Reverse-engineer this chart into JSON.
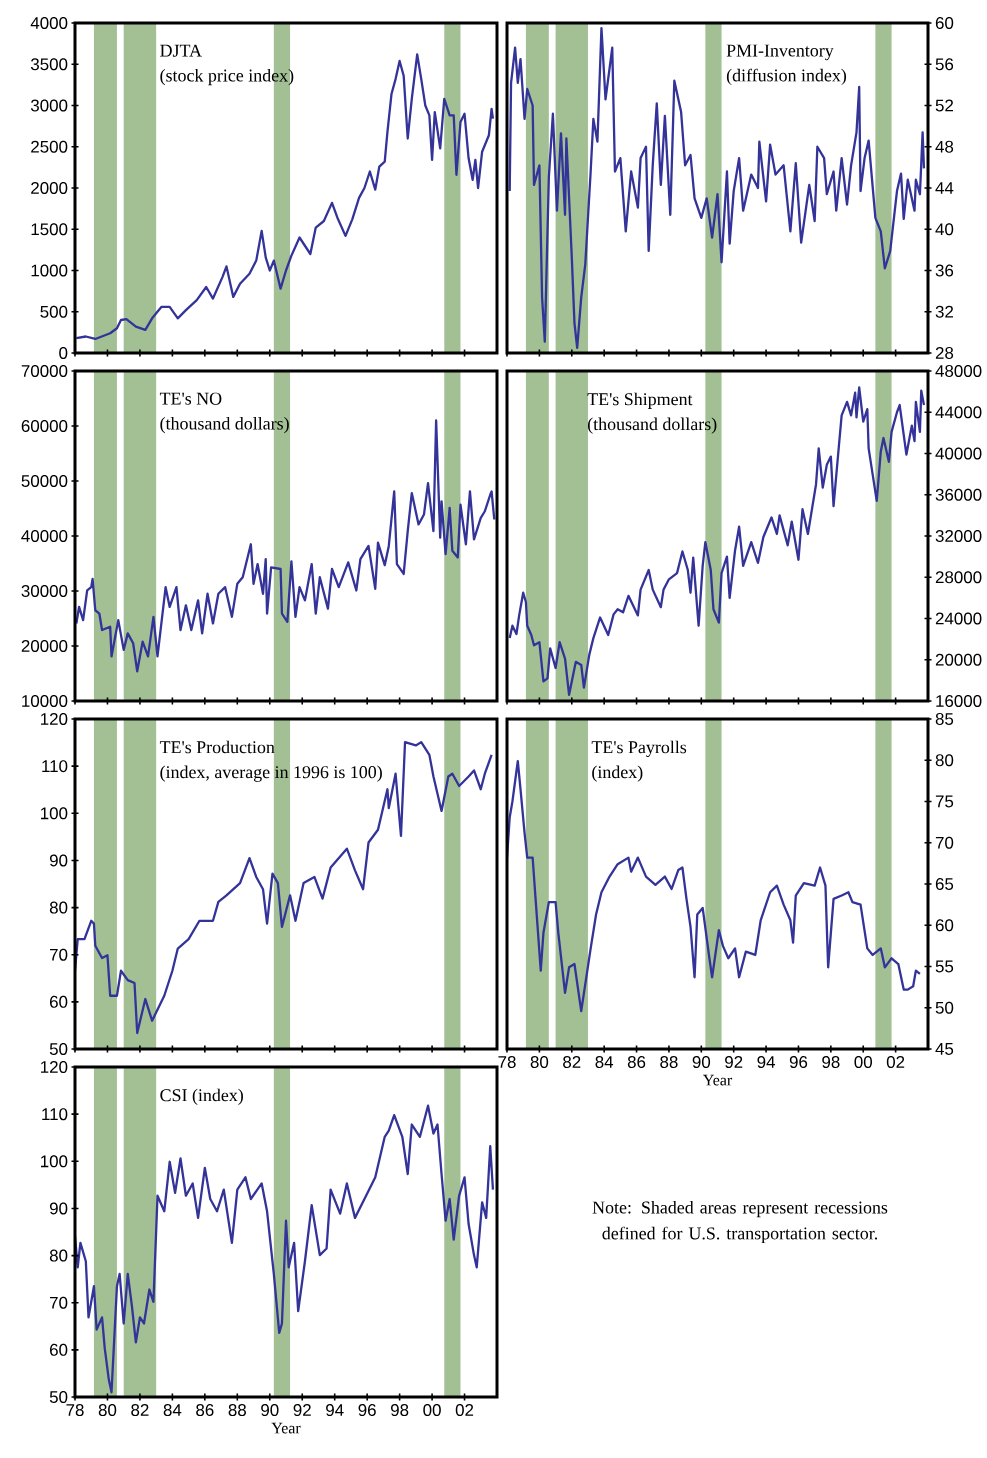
{
  "chart_data": [
    {
      "type": "line",
      "title": "DJTA",
      "subtitle": "(stock price index)",
      "color": "#333399",
      "xlim": [
        "1978-01",
        "2004-01"
      ],
      "ylim": [
        0,
        4000
      ],
      "yticks": [
        0,
        500,
        1000,
        1500,
        2000,
        2500,
        3000,
        3500,
        4000
      ],
      "tick_labels": "y",
      "xticks": [
        {
          "value": "1978",
          "label": null
        },
        {
          "value": "1980",
          "label": null
        },
        {
          "value": "1982",
          "label": null
        },
        {
          "value": "1984",
          "label": null
        },
        {
          "value": "1986",
          "label": null
        },
        {
          "value": "1988",
          "label": null
        },
        {
          "value": "1990",
          "label": null
        },
        {
          "value": "1992",
          "label": null
        },
        {
          "value": "1994",
          "label": null
        },
        {
          "value": "1996",
          "label": null
        },
        {
          "value": "1998",
          "label": null
        },
        {
          "value": "2000",
          "label": null
        },
        {
          "value": "2002",
          "label": null
        }
      ],
      "bands": [
        {
          "axis": "x",
          "from": "1979-03",
          "to": "1980-08",
          "color": "#a3c095"
        },
        {
          "axis": "x",
          "from": "1981-01",
          "to": "1983-01",
          "color": "#a3c095"
        },
        {
          "axis": "x",
          "from": "1990-04",
          "to": "1991-04",
          "color": "#a3c095"
        },
        {
          "axis": "x",
          "from": "2000-10",
          "to": "2001-10",
          "color": "#a3c095"
        }
      ],
      "x": [
        "1978-02",
        "1978-09",
        "1979-04",
        "1980-03",
        "1980-08",
        "1980-11",
        "1981-03",
        "1981-10",
        "1982-05",
        "1982-10",
        "1983-05",
        "1983-11",
        "1984-05",
        "1984-11",
        "1985-07",
        "1986-02",
        "1986-07",
        "1987-02",
        "1987-05",
        "1987-10",
        "1988-03",
        "1988-10",
        "1989-03",
        "1989-07",
        "1989-10",
        "1990-01",
        "1990-04",
        "1990-09",
        "1991-01",
        "1991-05",
        "1991-11",
        "1992-07",
        "1992-11",
        "1993-05",
        "1993-11",
        "1994-03",
        "1994-09",
        "1995-02",
        "1995-07",
        "1995-11",
        "1996-03",
        "1996-07",
        "1996-10",
        "1997-02",
        "1997-04",
        "1997-07",
        "1997-10",
        "1998-01",
        "1998-04",
        "1998-07",
        "1998-10",
        "1999-02",
        "1999-05",
        "1999-08",
        "1999-11",
        "2000-01",
        "2000-03",
        "2000-07",
        "2000-10",
        "2001-02",
        "2001-05",
        "2001-07",
        "2001-10",
        "2002-01",
        "2002-04",
        "2002-07",
        "2002-09",
        "2002-11",
        "2003-02",
        "2003-07",
        "2003-09",
        "2003-10"
      ],
      "values": [
        180,
        200,
        170,
        240,
        300,
        400,
        410,
        320,
        280,
        420,
        560,
        560,
        420,
        520,
        640,
        800,
        660,
        920,
        1050,
        680,
        840,
        960,
        1120,
        1480,
        1160,
        1000,
        1120,
        780,
        1000,
        1180,
        1400,
        1200,
        1520,
        1600,
        1820,
        1640,
        1420,
        1620,
        1880,
        2000,
        2200,
        1980,
        2260,
        2320,
        2680,
        3140,
        3320,
        3540,
        3360,
        2600,
        3080,
        3620,
        3320,
        3000,
        2880,
        2340,
        2920,
        2480,
        3080,
        2880,
        2880,
        2160,
        2800,
        2900,
        2360,
        2100,
        2340,
        2000,
        2440,
        2640,
        2960,
        2840
      ]
    },
    {
      "type": "line",
      "title": "PMI-Inventory",
      "subtitle": "(diffusion index)",
      "color": "#333399",
      "xlim": [
        "1978-01",
        "2004-01"
      ],
      "ylim": [
        28,
        60
      ],
      "yticks": [
        28,
        32,
        36,
        40,
        44,
        48,
        52,
        56,
        60
      ],
      "tick_labels": "y",
      "xticks": [
        {
          "value": "1978",
          "label": null
        },
        {
          "value": "1980",
          "label": null
        },
        {
          "value": "1982",
          "label": null
        },
        {
          "value": "1984",
          "label": null
        },
        {
          "value": "1986",
          "label": null
        },
        {
          "value": "1988",
          "label": null
        },
        {
          "value": "1990",
          "label": null
        },
        {
          "value": "1992",
          "label": null
        },
        {
          "value": "1994",
          "label": null
        },
        {
          "value": "1996",
          "label": null
        },
        {
          "value": "1998",
          "label": null
        },
        {
          "value": "2000",
          "label": null
        },
        {
          "value": "2002",
          "label": null
        }
      ],
      "bands": [
        {
          "axis": "x",
          "from": "1979-03",
          "to": "1980-08",
          "color": "#a3c095"
        },
        {
          "axis": "x",
          "from": "1981-01",
          "to": "1983-01",
          "color": "#a3c095"
        },
        {
          "axis": "x",
          "from": "1990-04",
          "to": "1991-04",
          "color": "#a3c095"
        },
        {
          "axis": "x",
          "from": "2000-10",
          "to": "2001-10",
          "color": "#a3c095"
        }
      ],
      "x": [
        "1978-03",
        "1978-04",
        "1978-07",
        "1978-09",
        "1978-11",
        "1979-02",
        "1979-04",
        "1979-08",
        "1979-09",
        "1980-01",
        "1980-03",
        "1980-05",
        "1980-08",
        "1980-11",
        "1981-02",
        "1981-05",
        "1981-08",
        "1981-09",
        "1982-01",
        "1982-03",
        "1982-05",
        "1982-08",
        "1982-11",
        "1983-03",
        "1983-05",
        "1983-08",
        "1983-11",
        "1984-02",
        "1984-07",
        "1984-09",
        "1985-01",
        "1985-05",
        "1985-09",
        "1986-02",
        "1986-04",
        "1986-08",
        "1986-10",
        "1987-01",
        "1987-04",
        "1987-07",
        "1987-10",
        "1988-02",
        "1988-05",
        "1988-10",
        "1989-01",
        "1989-05",
        "1989-08",
        "1990-01",
        "1990-05",
        "1990-09",
        "1991-01",
        "1991-04",
        "1991-08",
        "1991-10",
        "1992-01",
        "1992-05",
        "1992-08",
        "1993-02",
        "1993-07",
        "1993-08",
        "1994-01",
        "1994-04",
        "1994-08",
        "1995-02",
        "1995-07",
        "1995-11",
        "1996-03",
        "1996-09",
        "1997-01",
        "1997-03",
        "1997-08",
        "1997-10",
        "1998-03",
        "1998-05",
        "1998-09",
        "1999-01",
        "1999-04",
        "1999-08",
        "1999-10",
        "1999-11",
        "2000-02",
        "2000-05",
        "2000-10",
        "2001-02",
        "2001-05",
        "2001-09",
        "2002-02",
        "2002-05",
        "2002-07",
        "2002-10",
        "2003-03",
        "2003-04",
        "2003-07",
        "2003-09",
        "2003-10"
      ],
      "values": [
        43.7,
        54.2,
        57.6,
        54.2,
        56.5,
        50.7,
        53.6,
        52.0,
        44.3,
        46.2,
        33.4,
        29.1,
        45.0,
        51.2,
        41.8,
        49.3,
        41.4,
        48.8,
        37.3,
        30.9,
        28.5,
        33.4,
        36.6,
        45.6,
        50.7,
        48.5,
        59.5,
        52.6,
        57.6,
        45.6,
        46.9,
        39.8,
        45.6,
        42.1,
        46.9,
        48.0,
        37.9,
        46.2,
        52.2,
        44.3,
        51.0,
        41.4,
        54.4,
        51.4,
        46.2,
        47.2,
        43.0,
        41.1,
        43.0,
        39.2,
        43.4,
        36.8,
        45.6,
        38.6,
        43.7,
        46.9,
        41.8,
        45.3,
        44.0,
        48.5,
        42.7,
        48.2,
        45.3,
        46.2,
        39.8,
        46.4,
        38.7,
        44.3,
        40.8,
        48.0,
        46.9,
        43.4,
        45.6,
        41.8,
        46.9,
        42.4,
        46.2,
        49.4,
        53.8,
        43.7,
        46.9,
        48.6,
        41.1,
        39.8,
        36.2,
        37.9,
        43.7,
        45.4,
        41.0,
        44.8,
        41.8,
        44.8,
        43.4,
        49.4,
        45.9
      ]
    },
    {
      "type": "line",
      "title": "TE's NO",
      "subtitle": "(thousand dollars)",
      "color": "#333399",
      "xlim": [
        "1978-01",
        "2004-01"
      ],
      "ylim": [
        10000,
        70000
      ],
      "yticks": [
        10000,
        20000,
        30000,
        40000,
        50000,
        60000,
        70000
      ],
      "tick_labels": "y",
      "xticks": [
        {
          "value": "1978",
          "label": null
        },
        {
          "value": "1980",
          "label": null
        },
        {
          "value": "1982",
          "label": null
        },
        {
          "value": "1984",
          "label": null
        },
        {
          "value": "1986",
          "label": null
        },
        {
          "value": "1988",
          "label": null
        },
        {
          "value": "1990",
          "label": null
        },
        {
          "value": "1992",
          "label": null
        },
        {
          "value": "1994",
          "label": null
        },
        {
          "value": "1996",
          "label": null
        },
        {
          "value": "1998",
          "label": null
        },
        {
          "value": "2000",
          "label": null
        },
        {
          "value": "2002",
          "label": null
        }
      ],
      "bands": [
        {
          "axis": "x",
          "from": "1979-03",
          "to": "1980-08",
          "color": "#a3c095"
        },
        {
          "axis": "x",
          "from": "1981-01",
          "to": "1983-01",
          "color": "#a3c095"
        },
        {
          "axis": "x",
          "from": "1990-04",
          "to": "1991-04",
          "color": "#a3c095"
        },
        {
          "axis": "x",
          "from": "2000-10",
          "to": "2001-10",
          "color": "#a3c095"
        }
      ],
      "x": [
        "1978-02",
        "1978-04",
        "1978-07",
        "1978-10",
        "1979-01",
        "1979-02",
        "1979-04",
        "1979-07",
        "1979-09",
        "1980-03",
        "1980-04",
        "1980-09",
        "1981-01",
        "1981-04",
        "1981-08",
        "1981-11",
        "1982-03",
        "1982-07",
        "1982-11",
        "1983-02",
        "1983-08",
        "1983-11",
        "1984-04",
        "1984-07",
        "1984-11",
        "1985-03",
        "1985-08",
        "1985-11",
        "1986-03",
        "1986-07",
        "1986-11",
        "1987-04",
        "1987-09",
        "1988-01",
        "1988-05",
        "1988-11",
        "1989-01",
        "1989-04",
        "1989-08",
        "1989-10",
        "1989-11",
        "1990-02",
        "1990-09",
        "1990-10",
        "1991-02",
        "1991-05",
        "1991-08",
        "1991-11",
        "1992-03",
        "1992-08",
        "1992-11",
        "1993-02",
        "1993-08",
        "1993-11",
        "1994-04",
        "1994-11",
        "1995-05",
        "1995-08",
        "1996-02",
        "1996-07",
        "1996-09",
        "1997-02",
        "1997-05",
        "1997-09",
        "1997-11",
        "1998-04",
        "1998-07",
        "1998-10",
        "1999-03",
        "1999-07",
        "1999-10",
        "2000-02",
        "2000-04",
        "2000-07",
        "2000-08",
        "2000-11",
        "2001-02",
        "2001-04",
        "2001-08",
        "2001-10",
        "2002-02",
        "2002-05",
        "2002-08",
        "2003-01",
        "2003-04",
        "2003-08",
        "2003-09",
        "2003-11"
      ],
      "values": [
        24100,
        27100,
        24700,
        30100,
        30700,
        32200,
        26500,
        25900,
        22900,
        23500,
        18100,
        24700,
        19300,
        22300,
        20500,
        15400,
        20800,
        18100,
        25300,
        18100,
        30700,
        27100,
        30700,
        22900,
        27400,
        22900,
        28300,
        22300,
        29500,
        24100,
        29500,
        30700,
        25300,
        31300,
        32500,
        38500,
        31300,
        34900,
        29500,
        35800,
        25900,
        34300,
        34000,
        25900,
        24400,
        35400,
        25300,
        30700,
        28300,
        34900,
        25900,
        32500,
        26800,
        34000,
        30700,
        35200,
        30100,
        35800,
        38200,
        30400,
        38800,
        34700,
        38200,
        48100,
        34900,
        33100,
        40900,
        47800,
        42100,
        43900,
        49600,
        40900,
        61000,
        39700,
        46300,
        36700,
        45100,
        37300,
        36100,
        45700,
        38500,
        48100,
        39400,
        43300,
        44500,
        47500,
        48100,
        43000
      ]
    },
    {
      "type": "line",
      "title": "TE's Shipment",
      "subtitle": "(thousand dollars)",
      "color": "#333399",
      "xlim": [
        "1978-01",
        "2004-01"
      ],
      "ylim": [
        16000,
        48000
      ],
      "yticks": [
        16000,
        20000,
        24000,
        28000,
        32000,
        36000,
        40000,
        44000,
        48000
      ],
      "tick_labels": "y",
      "xticks": [
        {
          "value": "1978",
          "label": null
        },
        {
          "value": "1980",
          "label": null
        },
        {
          "value": "1982",
          "label": null
        },
        {
          "value": "1984",
          "label": null
        },
        {
          "value": "1986",
          "label": null
        },
        {
          "value": "1988",
          "label": null
        },
        {
          "value": "1990",
          "label": null
        },
        {
          "value": "1992",
          "label": null
        },
        {
          "value": "1994",
          "label": null
        },
        {
          "value": "1996",
          "label": null
        },
        {
          "value": "1998",
          "label": null
        },
        {
          "value": "2000",
          "label": null
        },
        {
          "value": "2002",
          "label": null
        }
      ],
      "bands": [
        {
          "axis": "x",
          "from": "1979-03",
          "to": "1980-08",
          "color": "#a3c095"
        },
        {
          "axis": "x",
          "from": "1981-01",
          "to": "1983-01",
          "color": "#a3c095"
        },
        {
          "axis": "x",
          "from": "1990-04",
          "to": "1991-04",
          "color": "#a3c095"
        },
        {
          "axis": "x",
          "from": "2000-10",
          "to": "2001-10",
          "color": "#a3c095"
        }
      ],
      "x": [
        "1978-03",
        "1978-05",
        "1978-08",
        "1978-10",
        "1979-01",
        "1979-03",
        "1979-04",
        "1979-07",
        "1979-09",
        "1980-01",
        "1980-04",
        "1980-07",
        "1980-09",
        "1981-01",
        "1981-04",
        "1981-08",
        "1981-11",
        "1982-04",
        "1982-08",
        "1982-10",
        "1983-02",
        "1983-05",
        "1983-10",
        "1984-04",
        "1984-08",
        "1984-11",
        "1985-03",
        "1985-07",
        "1986-02",
        "1986-04",
        "1986-10",
        "1987-01",
        "1987-07",
        "1987-09",
        "1988-01",
        "1988-07",
        "1988-11",
        "1989-03",
        "1989-05",
        "1989-07",
        "1989-11",
        "1990-02",
        "1990-04",
        "1990-08",
        "1990-10",
        "1991-02",
        "1991-04",
        "1991-08",
        "1991-10",
        "1992-02",
        "1992-05",
        "1992-08",
        "1993-02",
        "1993-07",
        "1993-11",
        "1994-05",
        "1994-09",
        "1994-11",
        "1995-05",
        "1995-08",
        "1996-01",
        "1996-04",
        "1996-08",
        "1997-02",
        "1997-04",
        "1997-07",
        "1997-10",
        "1998-01",
        "1998-03",
        "1998-07",
        "1998-09",
        "1999-01",
        "1999-04",
        "1999-07",
        "1999-08",
        "1999-10",
        "2000-01",
        "2000-04",
        "2000-05",
        "2000-11",
        "2001-02",
        "2001-04",
        "2001-08",
        "2001-10",
        "2002-02",
        "2002-04",
        "2002-09",
        "2003-01",
        "2003-03",
        "2003-04",
        "2003-07",
        "2003-08",
        "2003-10"
      ],
      "values": [
        22100,
        23300,
        22500,
        24300,
        26500,
        25600,
        23300,
        22400,
        21400,
        21700,
        17900,
        18200,
        21100,
        19200,
        21700,
        20100,
        16600,
        19800,
        19500,
        17300,
        20500,
        22100,
        24100,
        22400,
        24400,
        24900,
        24600,
        26200,
        24300,
        26800,
        28700,
        26800,
        25100,
        26800,
        27800,
        28400,
        30500,
        28700,
        26500,
        29900,
        23300,
        29100,
        31400,
        28700,
        24900,
        23600,
        28400,
        30000,
        26000,
        30600,
        32900,
        29100,
        31400,
        29400,
        31900,
        33800,
        32200,
        34000,
        31100,
        33400,
        29700,
        34600,
        32200,
        37000,
        40500,
        36700,
        38900,
        39700,
        34900,
        40800,
        43700,
        45000,
        43700,
        45900,
        43500,
        46400,
        43100,
        44300,
        40500,
        35400,
        40200,
        41500,
        39200,
        42100,
        44000,
        44700,
        39900,
        42700,
        41200,
        45000,
        42100,
        46100,
        44700
      ]
    },
    {
      "type": "line",
      "title": "TE's Production",
      "subtitle": "(index, average in 1996 is 100)",
      "color": "#333399",
      "xlim": [
        "1978-01",
        "2004-01"
      ],
      "ylim": [
        50,
        120
      ],
      "yticks": [
        50,
        60,
        70,
        80,
        90,
        100,
        110,
        120
      ],
      "tick_labels": "y",
      "xticks": [
        {
          "value": "1978",
          "label": null
        },
        {
          "value": "1980",
          "label": null
        },
        {
          "value": "1982",
          "label": null
        },
        {
          "value": "1984",
          "label": null
        },
        {
          "value": "1986",
          "label": null
        },
        {
          "value": "1988",
          "label": null
        },
        {
          "value": "1990",
          "label": null
        },
        {
          "value": "1992",
          "label": null
        },
        {
          "value": "1994",
          "label": null
        },
        {
          "value": "1996",
          "label": null
        },
        {
          "value": "1998",
          "label": null
        },
        {
          "value": "2000",
          "label": null
        },
        {
          "value": "2002",
          "label": null
        }
      ],
      "bands": [
        {
          "axis": "x",
          "from": "1979-03",
          "to": "1980-08",
          "color": "#a3c095"
        },
        {
          "axis": "x",
          "from": "1981-01",
          "to": "1983-01",
          "color": "#a3c095"
        },
        {
          "axis": "x",
          "from": "1990-04",
          "to": "1991-04",
          "color": "#a3c095"
        },
        {
          "axis": "x",
          "from": "2000-10",
          "to": "2001-10",
          "color": "#a3c095"
        }
      ],
      "x": [
        "1978-01",
        "1978-03",
        "1978-08",
        "1979-01",
        "1979-03",
        "1979-04",
        "1979-09",
        "1980-01",
        "1980-03",
        "1980-08",
        "1980-11",
        "1981-04",
        "1981-09",
        "1981-11",
        "1982-05",
        "1982-10",
        "1983-07",
        "1984-01",
        "1984-05",
        "1985-01",
        "1985-09",
        "1986-07",
        "1986-11",
        "1987-05",
        "1988-03",
        "1988-10",
        "1989-03",
        "1989-08",
        "1989-11",
        "1990-03",
        "1990-07",
        "1990-10",
        "1991-04",
        "1991-08",
        "1992-02",
        "1992-10",
        "1993-04",
        "1993-10",
        "1994-10",
        "1995-04",
        "1995-10",
        "1996-02",
        "1996-09",
        "1997-04",
        "1997-05",
        "1997-10",
        "1998-02",
        "1998-05",
        "1999-01",
        "1999-05",
        "1999-11",
        "2000-02",
        "2000-08",
        "2001-01",
        "2001-04",
        "2001-09",
        "2002-04",
        "2002-08",
        "2003-01",
        "2003-04",
        "2003-09"
      ],
      "values": [
        66.6,
        73.3,
        73.3,
        77.2,
        76.6,
        71.9,
        69.3,
        69.9,
        61.3,
        61.3,
        66.6,
        64.6,
        64.0,
        53.4,
        60.6,
        56.0,
        61.3,
        66.6,
        71.3,
        73.3,
        77.2,
        77.2,
        81.2,
        82.6,
        85.2,
        90.5,
        86.5,
        83.9,
        76.6,
        87.2,
        85.2,
        75.9,
        82.6,
        77.2,
        85.2,
        86.5,
        81.9,
        88.5,
        92.5,
        87.9,
        83.9,
        93.8,
        96.5,
        105.1,
        101.1,
        108.4,
        95.2,
        115.1,
        114.4,
        115.1,
        112.4,
        107.8,
        100.5,
        107.8,
        108.4,
        105.8,
        107.8,
        109.1,
        105.1,
        108.4,
        112.4
      ]
    },
    {
      "type": "line",
      "title": "TE's Payrolls",
      "subtitle": "(index)",
      "xlabel": "Year",
      "color": "#333399",
      "xlim": [
        "1978-01",
        "2004-01"
      ],
      "ylim": [
        45,
        85
      ],
      "yticks": [
        45,
        50,
        55,
        60,
        65,
        70,
        75,
        80,
        85
      ],
      "xticks": [
        {
          "value": "1978",
          "label": "78"
        },
        {
          "value": "1980",
          "label": "80"
        },
        {
          "value": "1982",
          "label": "82"
        },
        {
          "value": "1984",
          "label": "84"
        },
        {
          "value": "1986",
          "label": "86"
        },
        {
          "value": "1988",
          "label": "88"
        },
        {
          "value": "1990",
          "label": "90"
        },
        {
          "value": "1992",
          "label": "92"
        },
        {
          "value": "1994",
          "label": "94"
        },
        {
          "value": "1996",
          "label": "96"
        },
        {
          "value": "1998",
          "label": "98"
        },
        {
          "value": "2000",
          "label": "00"
        },
        {
          "value": "2002",
          "label": "02"
        }
      ],
      "bands": [
        {
          "axis": "x",
          "from": "1979-03",
          "to": "1980-08",
          "color": "#a3c095"
        },
        {
          "axis": "x",
          "from": "1981-01",
          "to": "1983-01",
          "color": "#a3c095"
        },
        {
          "axis": "x",
          "from": "1990-04",
          "to": "1991-04",
          "color": "#a3c095"
        },
        {
          "axis": "x",
          "from": "2000-10",
          "to": "2001-10",
          "color": "#a3c095"
        }
      ],
      "x": [
        "1978-01",
        "1978-03",
        "1978-05",
        "1978-09",
        "1978-11",
        "1979-02",
        "1979-04",
        "1979-08",
        "1979-10",
        "1980-02",
        "1980-04",
        "1980-08",
        "1981-01",
        "1981-03",
        "1981-08",
        "1981-11",
        "1982-03",
        "1982-08",
        "1983-03",
        "1983-07",
        "1983-11",
        "1984-05",
        "1984-11",
        "1985-07",
        "1985-09",
        "1986-02",
        "1986-08",
        "1987-03",
        "1987-10",
        "1988-03",
        "1988-08",
        "1988-11",
        "1989-02",
        "1989-05",
        "1989-08",
        "1989-10",
        "1990-02",
        "1990-07",
        "1990-09",
        "1991-02",
        "1991-05",
        "1991-09",
        "1992-02",
        "1992-05",
        "1992-10",
        "1993-05",
        "1993-09",
        "1994-04",
        "1994-09",
        "1995-02",
        "1995-07",
        "1995-09",
        "1995-11",
        "1996-05",
        "1997-01",
        "1997-05",
        "1997-09",
        "1997-11",
        "1998-03",
        "1998-09",
        "1999-02",
        "1999-05",
        "1999-11",
        "2000-04",
        "2000-08",
        "2001-02",
        "2001-05",
        "2001-10",
        "2002-03",
        "2002-07",
        "2002-10",
        "2003-02",
        "2003-04",
        "2003-07"
      ],
      "values": [
        68.2,
        73.1,
        75.0,
        79.9,
        76.5,
        71.2,
        68.2,
        68.2,
        63.6,
        54.5,
        59.1,
        62.8,
        62.8,
        59.1,
        51.8,
        54.9,
        55.3,
        49.6,
        57.2,
        61.3,
        64.0,
        65.9,
        67.4,
        68.2,
        66.5,
        68.2,
        65.9,
        64.9,
        65.9,
        64.4,
        66.7,
        67.0,
        63.2,
        59.8,
        53.7,
        61.3,
        62.1,
        56.0,
        53.7,
        59.4,
        57.5,
        56.0,
        57.2,
        53.7,
        56.8,
        56.4,
        60.6,
        64.0,
        64.8,
        62.5,
        60.6,
        57.9,
        63.6,
        65.1,
        64.8,
        67.0,
        64.8,
        54.9,
        63.2,
        63.6,
        64.0,
        62.8,
        62.5,
        57.2,
        56.4,
        57.2,
        54.9,
        56.0,
        55.3,
        52.2,
        52.2,
        52.6,
        54.5,
        54.1
      ]
    },
    {
      "type": "line",
      "title": "CSI (index)",
      "xlabel": "Year",
      "color": "#333399",
      "xlim": [
        "1978-01",
        "2004-01"
      ],
      "ylim": [
        50,
        120
      ],
      "yticks": [
        50,
        60,
        70,
        80,
        90,
        100,
        110,
        120
      ],
      "annotations": [
        "Note: Shaded areas represent recessions defined for U.S. transportation sector."
      ],
      "xticks": [
        {
          "value": "1978",
          "label": "78"
        },
        {
          "value": "1980",
          "label": "80"
        },
        {
          "value": "1982",
          "label": "82"
        },
        {
          "value": "1984",
          "label": "84"
        },
        {
          "value": "1986",
          "label": "86"
        },
        {
          "value": "1988",
          "label": "88"
        },
        {
          "value": "1990",
          "label": "90"
        },
        {
          "value": "1992",
          "label": "92"
        },
        {
          "value": "1994",
          "label": "94"
        },
        {
          "value": "1996",
          "label": "96"
        },
        {
          "value": "1998",
          "label": "98"
        },
        {
          "value": "2000",
          "label": "00"
        },
        {
          "value": "2002",
          "label": "02"
        }
      ],
      "bands": [
        {
          "axis": "x",
          "from": "1979-03",
          "to": "1980-08",
          "color": "#a3c095"
        },
        {
          "axis": "x",
          "from": "1981-01",
          "to": "1983-01",
          "color": "#a3c095"
        },
        {
          "axis": "x",
          "from": "1990-04",
          "to": "1991-04",
          "color": "#a3c095"
        },
        {
          "axis": "x",
          "from": "2000-10",
          "to": "2001-10",
          "color": "#a3c095"
        }
      ],
      "x": [
        "1978-01",
        "1978-03",
        "1978-05",
        "1978-09",
        "1978-11",
        "1979-03",
        "1979-05",
        "1979-09",
        "1979-11",
        "1980-02",
        "1980-04",
        "1980-08",
        "1980-10",
        "1981-01",
        "1981-04",
        "1981-07",
        "1981-10",
        "1982-01",
        "1982-04",
        "1982-08",
        "1982-11",
        "1983-02",
        "1983-07",
        "1983-11",
        "1984-03",
        "1984-07",
        "1984-11",
        "1985-04",
        "1985-08",
        "1986-01",
        "1986-05",
        "1986-10",
        "1987-03",
        "1987-09",
        "1988-01",
        "1988-07",
        "1988-11",
        "1989-07",
        "1989-11",
        "1990-04",
        "1990-08",
        "1990-10",
        "1991-01",
        "1991-03",
        "1991-07",
        "1991-10",
        "1992-03",
        "1992-08",
        "1993-02",
        "1993-07",
        "1993-10",
        "1994-05",
        "1994-10",
        "1995-04",
        "1995-11",
        "1996-07",
        "1997-02",
        "1997-05",
        "1997-09",
        "1998-03",
        "1998-07",
        "1998-10",
        "1999-04",
        "1999-10",
        "2000-02",
        "2000-05",
        "2000-08",
        "2000-11",
        "2001-02",
        "2001-05",
        "2001-09",
        "2002-01",
        "2002-04",
        "2002-08",
        "2002-10",
        "2003-02",
        "2003-05",
        "2003-08",
        "2003-10"
      ],
      "values": [
        84.1,
        77.5,
        82.7,
        78.8,
        66.9,
        73.5,
        64.3,
        66.9,
        60.3,
        53.7,
        51.0,
        73.5,
        76.1,
        65.6,
        76.1,
        69.5,
        61.6,
        66.9,
        65.6,
        72.8,
        70.2,
        92.7,
        89.4,
        99.9,
        93.3,
        100.6,
        92.7,
        95.3,
        88.0,
        98.6,
        92.0,
        89.4,
        94.0,
        82.7,
        94.0,
        96.6,
        92.0,
        95.3,
        89.4,
        76.1,
        63.6,
        65.6,
        87.4,
        77.5,
        82.7,
        68.2,
        78.8,
        90.7,
        80.1,
        81.5,
        94.0,
        88.9,
        95.3,
        88.0,
        92.0,
        96.6,
        105.2,
        106.5,
        109.8,
        105.2,
        97.3,
        107.8,
        105.2,
        111.8,
        105.9,
        107.8,
        97.3,
        87.4,
        92.0,
        83.4,
        92.7,
        96.6,
        86.7,
        80.1,
        77.5,
        91.3,
        88.0,
        103.2,
        94.0
      ]
    }
  ]
}
